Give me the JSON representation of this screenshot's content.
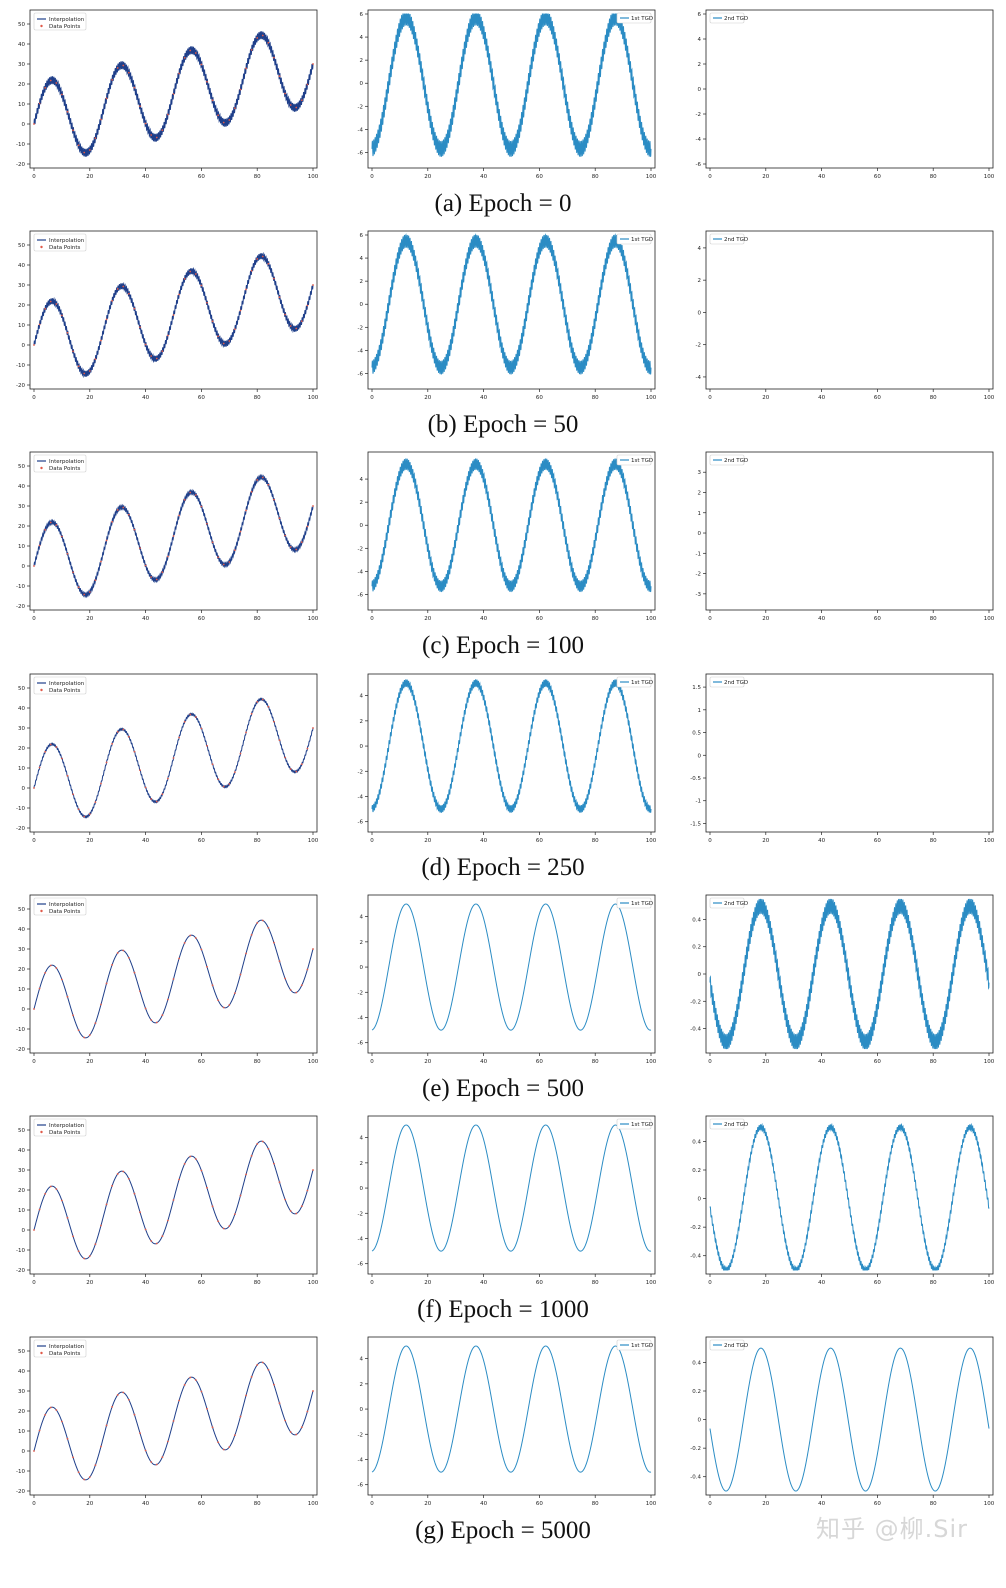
{
  "watermark": "知乎 @柳.Sir",
  "colors": {
    "interpolation": "#1f3f8a",
    "data_points": "#e05a4a",
    "tgd": "#2b8cc4"
  },
  "chart_data": [
    {
      "caption": "(a) Epoch = 0",
      "panels": [
        {
          "type": "line",
          "legend": [
            "Interpolation",
            "Data Points"
          ],
          "xlim": [
            0,
            100
          ],
          "ylim": [
            -20,
            55
          ],
          "xticks": [
            0,
            20,
            40,
            60,
            80,
            100
          ],
          "yticks": [
            -20,
            -10,
            0,
            10,
            20,
            30,
            40,
            50
          ],
          "series": [
            {
              "name": "Interpolation",
              "kind": "interp",
              "amp": 20,
              "period": 25,
              "slope": 0.3,
              "noise": 2.0,
              "freq": 2.0
            }
          ]
        },
        {
          "type": "line",
          "legend": [
            "1st TGD"
          ],
          "xlim": [
            0,
            100
          ],
          "ylim": [
            -7,
            6
          ],
          "xticks": [
            0,
            20,
            40,
            60,
            80,
            100
          ],
          "yticks": [
            -6,
            -4,
            -2,
            0,
            2,
            4,
            6
          ],
          "series": [
            {
              "name": "1st TGD",
              "kind": "tgd1",
              "amp": 5.7,
              "period": 25,
              "noise": 0.7,
              "freq": 2.0
            }
          ]
        },
        {
          "type": "line",
          "legend": [
            "2nd TGD"
          ],
          "xlim": [
            0,
            100
          ],
          "ylim": [
            -6,
            6
          ],
          "xticks": [
            0,
            20,
            40,
            60,
            80,
            100
          ],
          "yticks": [
            -6,
            -4,
            -2,
            0,
            2,
            4,
            6
          ],
          "series": [
            {
              "name": "2nd TGD",
              "kind": "tgd2",
              "base": 0.0,
              "amp": 5.5,
              "freq": 2.0
            }
          ]
        }
      ]
    },
    {
      "caption": "(b) Epoch = 50",
      "panels": [
        {
          "type": "line",
          "legend": [
            "Interpolation",
            "Data Points"
          ],
          "xlim": [
            0,
            100
          ],
          "ylim": [
            -20,
            55
          ],
          "xticks": [
            0,
            20,
            40,
            60,
            80,
            100
          ],
          "yticks": [
            -20,
            -10,
            0,
            10,
            20,
            30,
            40,
            50
          ],
          "series": [
            {
              "name": "Interpolation",
              "kind": "interp",
              "amp": 20,
              "period": 25,
              "slope": 0.3,
              "noise": 1.5,
              "freq": 2.0
            }
          ]
        },
        {
          "type": "line",
          "legend": [
            "1st TGD"
          ],
          "xlim": [
            0,
            100
          ],
          "ylim": [
            -7,
            6
          ],
          "xticks": [
            0,
            20,
            40,
            60,
            80,
            100
          ],
          "yticks": [
            -6,
            -4,
            -2,
            0,
            2,
            4,
            6
          ],
          "series": [
            {
              "name": "1st TGD",
              "kind": "tgd1",
              "amp": 5.5,
              "period": 25,
              "noise": 0.6,
              "freq": 2.0
            }
          ]
        },
        {
          "type": "line",
          "legend": [
            "2nd TGD"
          ],
          "xlim": [
            0,
            100
          ],
          "ylim": [
            -4.5,
            4.8
          ],
          "xticks": [
            0,
            20,
            40,
            60,
            80,
            100
          ],
          "yticks": [
            -4,
            -2,
            0,
            2,
            4
          ],
          "series": [
            {
              "name": "2nd TGD",
              "kind": "tgd2",
              "base": 0.1,
              "amp": 4.3,
              "freq": 2.0
            }
          ]
        }
      ]
    },
    {
      "caption": "(c) Epoch = 100",
      "panels": [
        {
          "type": "line",
          "legend": [
            "Interpolation",
            "Data Points"
          ],
          "xlim": [
            0,
            100
          ],
          "ylim": [
            -20,
            55
          ],
          "xticks": [
            0,
            20,
            40,
            60,
            80,
            100
          ],
          "yticks": [
            -20,
            -10,
            0,
            10,
            20,
            30,
            40,
            50
          ],
          "series": [
            {
              "name": "Interpolation",
              "kind": "interp",
              "amp": 20,
              "period": 25,
              "slope": 0.3,
              "noise": 1.0,
              "freq": 2.0
            }
          ]
        },
        {
          "type": "line",
          "legend": [
            "1st TGD"
          ],
          "xlim": [
            0,
            100
          ],
          "ylim": [
            -7,
            6
          ],
          "xticks": [
            0,
            20,
            40,
            60,
            80,
            100
          ],
          "yticks": [
            -6,
            -4,
            -2,
            0,
            2,
            4
          ],
          "series": [
            {
              "name": "1st TGD",
              "kind": "tgd1",
              "amp": 5.3,
              "period": 25,
              "noise": 0.5,
              "freq": 2.0
            }
          ]
        },
        {
          "type": "line",
          "legend": [
            "2nd TGD"
          ],
          "xlim": [
            0,
            100
          ],
          "ylim": [
            -3.6,
            3.8
          ],
          "xticks": [
            0,
            20,
            40,
            60,
            80,
            100
          ],
          "yticks": [
            -3,
            -2,
            -1,
            0,
            1,
            2,
            3
          ],
          "series": [
            {
              "name": "2nd TGD",
              "kind": "tgd2",
              "base": 0.5,
              "amp": 3.2,
              "freq": 2.0
            }
          ]
        }
      ]
    },
    {
      "caption": "(d) Epoch = 250",
      "panels": [
        {
          "type": "line",
          "legend": [
            "Interpolation",
            "Data Points"
          ],
          "xlim": [
            0,
            100
          ],
          "ylim": [
            -20,
            55
          ],
          "xticks": [
            0,
            20,
            40,
            60,
            80,
            100
          ],
          "yticks": [
            -20,
            -10,
            0,
            10,
            20,
            30,
            40,
            50
          ],
          "series": [
            {
              "name": "Interpolation",
              "kind": "interp",
              "amp": 20,
              "period": 25,
              "slope": 0.3,
              "noise": 0.5,
              "freq": 2.0
            }
          ]
        },
        {
          "type": "line",
          "legend": [
            "1st TGD"
          ],
          "xlim": [
            0,
            100
          ],
          "ylim": [
            -6.5,
            5.4
          ],
          "xticks": [
            0,
            20,
            40,
            60,
            80,
            100
          ],
          "yticks": [
            -6,
            -4,
            -2,
            0,
            2,
            4
          ],
          "series": [
            {
              "name": "1st TGD",
              "kind": "tgd1",
              "amp": 5.0,
              "period": 25,
              "noise": 0.3,
              "freq": 2.0
            }
          ]
        },
        {
          "type": "line",
          "legend": [
            "2nd TGD"
          ],
          "xlim": [
            0,
            100
          ],
          "ylim": [
            -1.6,
            1.7
          ],
          "xticks": [
            0,
            20,
            40,
            60,
            80,
            100
          ],
          "yticks": [
            -1.5,
            -1.0,
            -0.5,
            0.0,
            0.5,
            1.0,
            1.5
          ],
          "series": [
            {
              "name": "2nd TGD",
              "kind": "tgd2",
              "base": 0.5,
              "amp": 1.1,
              "freq": 2.0
            }
          ]
        }
      ]
    },
    {
      "caption": "(e) Epoch = 500",
      "panels": [
        {
          "type": "line",
          "legend": [
            "Interpolation",
            "Data Points"
          ],
          "xlim": [
            0,
            100
          ],
          "ylim": [
            -20,
            55
          ],
          "xticks": [
            0,
            20,
            40,
            60,
            80,
            100
          ],
          "yticks": [
            -20,
            -10,
            0,
            10,
            20,
            30,
            40,
            50
          ],
          "series": [
            {
              "name": "Interpolation",
              "kind": "interp",
              "amp": 20,
              "period": 25,
              "slope": 0.3,
              "noise": 0.0,
              "freq": 2.0
            }
          ]
        },
        {
          "type": "line",
          "legend": [
            "1st TGD"
          ],
          "xlim": [
            0,
            100
          ],
          "ylim": [
            -6.5,
            5.4
          ],
          "xticks": [
            0,
            20,
            40,
            60,
            80,
            100
          ],
          "yticks": [
            -6,
            -4,
            -2,
            0,
            2,
            4
          ],
          "series": [
            {
              "name": "1st TGD",
              "kind": "tgd1",
              "amp": 5.0,
              "period": 25,
              "noise": 0.0,
              "freq": 2.0
            }
          ]
        },
        {
          "type": "line",
          "legend": [
            "2nd TGD"
          ],
          "xlim": [
            0,
            100
          ],
          "ylim": [
            -0.55,
            0.55
          ],
          "xticks": [
            0,
            20,
            40,
            60,
            80,
            100
          ],
          "yticks": [
            -0.4,
            -0.2,
            0.0,
            0.2,
            0.4
          ],
          "series": [
            {
              "name": "2nd TGD",
              "kind": "tgd2sine",
              "amp": 0.5,
              "period": 25,
              "noise": 0.06,
              "freq": 2.0
            }
          ]
        }
      ]
    },
    {
      "caption": "(f) Epoch = 1000",
      "panels": [
        {
          "type": "line",
          "legend": [
            "Interpolation",
            "Data Points"
          ],
          "xlim": [
            0,
            100
          ],
          "ylim": [
            -20,
            55
          ],
          "xticks": [
            0,
            20,
            40,
            60,
            80,
            100
          ],
          "yticks": [
            -20,
            -10,
            0,
            10,
            20,
            30,
            40,
            50
          ],
          "series": [
            {
              "name": "Interpolation",
              "kind": "interp",
              "amp": 20,
              "period": 25,
              "slope": 0.3,
              "noise": 0.0,
              "freq": 2.0
            }
          ]
        },
        {
          "type": "line",
          "legend": [
            "1st TGD"
          ],
          "xlim": [
            0,
            100
          ],
          "ylim": [
            -6.5,
            5.4
          ],
          "xticks": [
            0,
            20,
            40,
            60,
            80,
            100
          ],
          "yticks": [
            -6,
            -4,
            -2,
            0,
            2,
            4
          ],
          "series": [
            {
              "name": "1st TGD",
              "kind": "tgd1",
              "amp": 5.0,
              "period": 25,
              "noise": 0.0,
              "freq": 2.0
            }
          ]
        },
        {
          "type": "line",
          "legend": [
            "2nd TGD"
          ],
          "xlim": [
            0,
            100
          ],
          "ylim": [
            -0.5,
            0.55
          ],
          "xticks": [
            0,
            20,
            40,
            60,
            80,
            100
          ],
          "yticks": [
            -0.4,
            -0.2,
            0.0,
            0.2,
            0.4
          ],
          "series": [
            {
              "name": "2nd TGD",
              "kind": "tgd2sine",
              "amp": 0.5,
              "period": 25,
              "noise": 0.02,
              "freq": 2.0
            }
          ]
        }
      ]
    },
    {
      "caption": "(g) Epoch = 5000",
      "panels": [
        {
          "type": "line",
          "legend": [
            "Interpolation",
            "Data Points"
          ],
          "xlim": [
            0,
            100
          ],
          "ylim": [
            -20,
            55
          ],
          "xticks": [
            0,
            20,
            40,
            60,
            80,
            100
          ],
          "yticks": [
            -20,
            -10,
            0,
            10,
            20,
            30,
            40,
            50
          ],
          "series": [
            {
              "name": "Interpolation",
              "kind": "interp",
              "amp": 20,
              "period": 25,
              "slope": 0.3,
              "noise": 0.0,
              "freq": 2.0
            }
          ]
        },
        {
          "type": "line",
          "legend": [
            "1st TGD"
          ],
          "xlim": [
            0,
            100
          ],
          "ylim": [
            -6.5,
            5.4
          ],
          "xticks": [
            0,
            20,
            40,
            60,
            80,
            100
          ],
          "yticks": [
            -6,
            -4,
            -2,
            0,
            2,
            4
          ],
          "series": [
            {
              "name": "1st TGD",
              "kind": "tgd1",
              "amp": 5.0,
              "period": 25,
              "noise": 0.0,
              "freq": 2.0
            }
          ]
        },
        {
          "type": "line",
          "legend": [
            "2nd TGD"
          ],
          "xlim": [
            0,
            100
          ],
          "ylim": [
            -0.5,
            0.55
          ],
          "xticks": [
            0,
            20,
            40,
            60,
            80,
            100
          ],
          "yticks": [
            -0.4,
            -0.2,
            0.0,
            0.2,
            0.4
          ],
          "series": [
            {
              "name": "2nd TGD",
              "kind": "tgd2sine",
              "amp": 0.5,
              "period": 25,
              "noise": 0.0,
              "freq": 2.0
            }
          ]
        }
      ]
    }
  ]
}
